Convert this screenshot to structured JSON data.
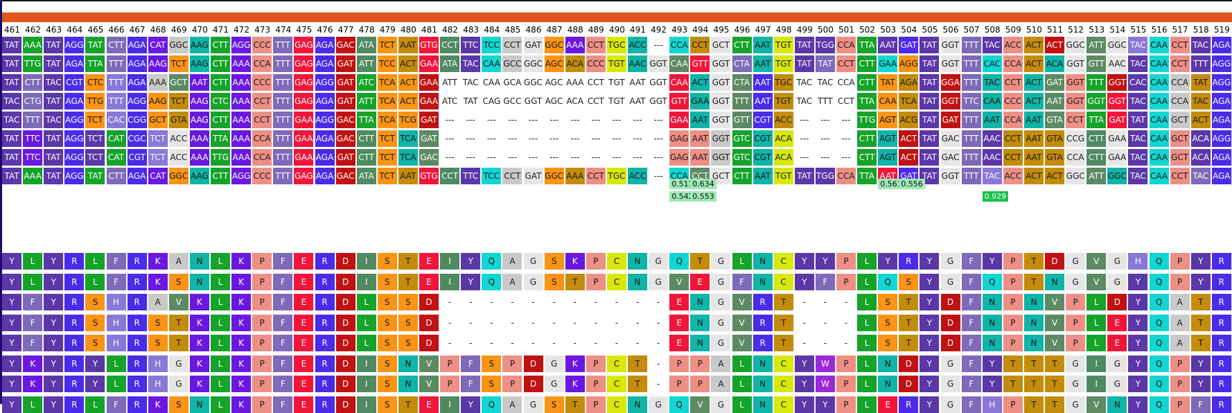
{
  "positions": [
    "461",
    "462",
    "463",
    "464",
    "465",
    "466",
    "467",
    "468",
    "469",
    "470",
    "471",
    "472",
    "473",
    "474",
    "475",
    "476",
    "477",
    "478",
    "479",
    "480",
    "481",
    "482",
    "483",
    "484",
    "485",
    "486",
    "487",
    "488",
    "489",
    "490",
    "491",
    "492",
    "493",
    "494",
    "495",
    "496",
    "497",
    "498",
    "499",
    "500",
    "501",
    "502",
    "503",
    "504",
    "505",
    "506",
    "507",
    "508",
    "509",
    "510",
    "511",
    "512",
    "513",
    "514",
    "515",
    "516",
    "517",
    "518",
    "519"
  ],
  "codon_rows": [
    [
      "TAT",
      "AAA",
      "TAT",
      "AGG",
      "TAT",
      "CTT",
      "AGA",
      "CAT",
      "GGC",
      "AAG",
      "CTT",
      "AGG",
      "CCC",
      "TTT",
      "GAG",
      "AGA",
      "GAC",
      "ATA",
      "TCT",
      "AAT",
      "GTG",
      "CCT",
      "TTC",
      "TCC",
      "CCT",
      "GAT",
      "GGC",
      "AAA",
      "CCT",
      "TGC",
      "ACC",
      "---",
      "CCA",
      "CCT",
      "GCT",
      "CTT",
      "AAT",
      "TGT",
      "TAT",
      "TGG",
      "CCA",
      "TTA",
      "AAT",
      "GAT",
      "TAT",
      "GGT",
      "TTT",
      "TAC",
      "ACC",
      "ACT",
      "ACT",
      "GGC",
      "ATT",
      "GGC",
      "TAC",
      "CAA",
      "CCT",
      "TAC",
      "AGA"
    ],
    [
      "TAT",
      "TTG",
      "TAT",
      "AGA",
      "TTA",
      "TTT",
      "AGA",
      "AAG",
      "TCT",
      "AAG",
      "CTT",
      "AAA",
      "CCA",
      "TTT",
      "GAG",
      "AGA",
      "GAT",
      "ATT",
      "TCC",
      "ACT",
      "GAA",
      "ATA",
      "TAC",
      "CAA",
      "GCC",
      "GGC",
      "AGC",
      "ACA",
      "CCC",
      "TGT",
      "AAC",
      "GGT",
      "CAA",
      "GTT",
      "GGT",
      "CTA",
      "AAT",
      "TGT",
      "TAT",
      "TAT",
      "CCT",
      "CTT",
      "GAA",
      "AGG",
      "TAT",
      "GGT",
      "TTT",
      "CAC",
      "CCA",
      "ACT",
      "ACA",
      "GGT",
      "GTT",
      "AAC",
      "TAC",
      "CAA",
      "CCT",
      "TTT",
      "AGG"
    ],
    [
      "TAT",
      "CTT",
      "TAC",
      "CGT",
      "CTC",
      "TTT",
      "AGA",
      "AAA",
      "GCT",
      "AAT",
      "CTT",
      "AAA",
      "CCC",
      "TTT",
      "GAG",
      "AGG",
      "GAT",
      "ATC",
      "TCA",
      "ACT",
      "GAA",
      "ATT",
      "TAC",
      "CAA",
      "GCA",
      "GGC",
      "AGC",
      "AAA",
      "CCT",
      "TGT",
      "AAT",
      "GGT",
      "CAA",
      "ACT",
      "GGT",
      "CTA",
      "AAT",
      "TGC",
      "TAC",
      "TAC",
      "CCA",
      "CTT",
      "TAT",
      "AGA",
      "TAT",
      "GGA",
      "TTT",
      "TAC",
      "CCT",
      "ACT",
      "GAT",
      "GGT",
      "TTT",
      "GGT",
      "CAC",
      "CAA",
      "CCA",
      "TAT",
      "AGG"
    ],
    [
      "TAC",
      "CTG",
      "TAT",
      "AGA",
      "TTG",
      "TTT",
      "AGG",
      "AAG",
      "TCT",
      "AAG",
      "CTC",
      "AAA",
      "CCT",
      "TTT",
      "GAG",
      "AGA",
      "GAT",
      "ATT",
      "TCA",
      "ACT",
      "GAA",
      "ATC",
      "TAT",
      "CAG",
      "GCC",
      "GGT",
      "AGC",
      "ACA",
      "CCT",
      "TGT",
      "AAT",
      "GGT",
      "GTT",
      "GAA",
      "GGT",
      "TTT",
      "AAT",
      "TGT",
      "TAC",
      "TTT",
      "CCT",
      "TTA",
      "CAA",
      "TCA",
      "TAT",
      "GGT",
      "TTC",
      "CAA",
      "CCC",
      "ACT",
      "AAT",
      "GGT",
      "GGT",
      "GGT",
      "TAC",
      "CAA",
      "CCA",
      "TAC",
      "AGA"
    ],
    [
      "TAC",
      "TTT",
      "TAC",
      "AGG",
      "TCT",
      "CAC",
      "CGG",
      "GCT",
      "GTA",
      "AAG",
      "CTT",
      "AAA",
      "CCT",
      "TTT",
      "GAA",
      "AGG",
      "GAC",
      "TTA",
      "TCA",
      "TCG",
      "GAT",
      "---",
      "---",
      "---",
      "---",
      "---",
      "---",
      "---",
      "---",
      "---",
      "---",
      "---",
      "GAA",
      "AAT",
      "GGT",
      "GTT",
      "CGT",
      "ACC",
      "---",
      "---",
      "---",
      "TTG",
      "AGT",
      "ACG",
      "TAT",
      "GAT",
      "TTT",
      "AAT",
      "CCA",
      "AAT",
      "GTA",
      "CCT",
      "TTA",
      "GAT",
      "TAT",
      "CAA",
      "GCT",
      "ACT",
      "AGA"
    ],
    [
      "TAT",
      "TTC",
      "TAT",
      "AGG",
      "TCT",
      "CAT",
      "CGC",
      "TCT",
      "ACC",
      "AAA",
      "TTA",
      "AAA",
      "CCA",
      "TTT",
      "GAA",
      "AGA",
      "GAC",
      "CTT",
      "TCT",
      "TCA",
      "GAT",
      "---",
      "---",
      "---",
      "---",
      "---",
      "---",
      "---",
      "---",
      "---",
      "---",
      "---",
      "GAG",
      "AAT",
      "GGT",
      "GTC",
      "CGT",
      "ACA",
      "---",
      "---",
      "---",
      "CTT",
      "AGT",
      "ACT",
      "TAT",
      "GAC",
      "TTT",
      "AAC",
      "CCT",
      "AAT",
      "GTA",
      "CCG",
      "CTT",
      "GAA",
      "TAC",
      "CAA",
      "GCT",
      "ACA",
      "AGG"
    ],
    [
      "TAT",
      "TTC",
      "TAT",
      "AGG",
      "TCT",
      "CAT",
      "CGT",
      "TCT",
      "ACC",
      "AAA",
      "TTG",
      "AAA",
      "CCA",
      "TTT",
      "GAA",
      "AGA",
      "GAT",
      "CTT",
      "TCT",
      "TCA",
      "GAC",
      "---",
      "---",
      "---",
      "---",
      "---",
      "---",
      "---",
      "---",
      "---",
      "---",
      "---",
      "GAG",
      "AAT",
      "GGT",
      "GTC",
      "CGT",
      "ACA",
      "---",
      "---",
      "---",
      "CTT",
      "AGT",
      "ACT",
      "TAT",
      "GAC",
      "TTT",
      "AAC",
      "CCT",
      "AAT",
      "GTA",
      "CCA",
      "CTT",
      "GAA",
      "TAC",
      "CAA",
      "GCT",
      "ACA",
      "AGA"
    ],
    [
      "TAT",
      "AAA",
      "TAT",
      "AGG",
      "TAT",
      "CTT",
      "AGA",
      "CAT",
      "GGC",
      "AAG",
      "CTT",
      "AGG",
      "CCC",
      "TTT",
      "GAG",
      "AGA",
      "GAC",
      "ATA",
      "TCT",
      "AAT",
      "GTG",
      "CCT",
      "TTC",
      "TCC",
      "CCT",
      "GAT",
      "GGC",
      "AAA",
      "CCT",
      "TGC",
      "ACC",
      "---",
      "CCA",
      "CCT",
      "GCT",
      "CTT",
      "AAT",
      "TGT",
      "TAT",
      "TGG",
      "CCA",
      "TTA",
      "AAT",
      "GAT",
      "TAT",
      "GGT",
      "TTT",
      "TAC",
      "ACC",
      "ACT",
      "ACT",
      "GGC",
      "ATT",
      "GGC",
      "TAC",
      "CAA",
      "CCT",
      "TAC",
      "AGA"
    ]
  ],
  "scores": [
    {
      "col": 32,
      "row": 0,
      "value": "0.511",
      "style": "light"
    },
    {
      "col": 33,
      "row": 0,
      "value": "0.634",
      "style": "light"
    },
    {
      "col": 32,
      "row": 1,
      "value": "0.542",
      "style": "light"
    },
    {
      "col": 33,
      "row": 1,
      "value": "0.553",
      "style": "light"
    },
    {
      "col": 42,
      "row": 0,
      "value": "0.563",
      "style": "light"
    },
    {
      "col": 43,
      "row": 0,
      "value": "0.556",
      "style": "light"
    },
    {
      "col": 47,
      "row": 1,
      "value": "0.929",
      "style": "dark"
    }
  ],
  "aa_rows": [
    [
      "Y",
      "L",
      "Y",
      "R",
      "L",
      "F",
      "R",
      "K",
      "A",
      "N",
      "L",
      "K",
      "P",
      "F",
      "E",
      "R",
      "D",
      "I",
      "S",
      "T",
      "E",
      "I",
      "Y",
      "Q",
      "A",
      "G",
      "S",
      "K",
      "P",
      "C",
      "N",
      "G",
      "Q",
      "T",
      "G",
      "L",
      "N",
      "C",
      "Y",
      "Y",
      "P",
      "L",
      "Y",
      "R",
      "Y",
      "G",
      "F",
      "Y",
      "P",
      "T",
      "D",
      "G",
      "V",
      "G",
      "H",
      "Q",
      "P",
      "Y",
      "R"
    ],
    [
      "Y",
      "L",
      "Y",
      "R",
      "L",
      "F",
      "R",
      "K",
      "S",
      "N",
      "L",
      "K",
      "P",
      "F",
      "E",
      "R",
      "D",
      "I",
      "S",
      "T",
      "E",
      "I",
      "Y",
      "Q",
      "A",
      "G",
      "S",
      "T",
      "P",
      "C",
      "N",
      "G",
      "V",
      "E",
      "G",
      "F",
      "N",
      "C",
      "Y",
      "F",
      "P",
      "L",
      "Q",
      "S",
      "Y",
      "G",
      "F",
      "Q",
      "P",
      "T",
      "N",
      "G",
      "V",
      "G",
      "Y",
      "Q",
      "P",
      "Y",
      "R"
    ],
    [
      "Y",
      "F",
      "Y",
      "R",
      "S",
      "H",
      "R",
      "A",
      "V",
      "K",
      "L",
      "K",
      "P",
      "F",
      "E",
      "R",
      "D",
      "L",
      "S",
      "S",
      "D",
      "-",
      "-",
      "-",
      "-",
      "-",
      "-",
      "-",
      "-",
      "-",
      "-",
      "-",
      "E",
      "N",
      "G",
      "V",
      "R",
      "T",
      "-",
      "-",
      "-",
      "L",
      "S",
      "T",
      "Y",
      "D",
      "F",
      "N",
      "P",
      "N",
      "V",
      "P",
      "L",
      "D",
      "Y",
      "Q",
      "A",
      "T",
      "R"
    ],
    [
      "Y",
      "F",
      "Y",
      "R",
      "S",
      "H",
      "R",
      "S",
      "T",
      "K",
      "L",
      "K",
      "P",
      "F",
      "E",
      "R",
      "D",
      "L",
      "S",
      "S",
      "D",
      "-",
      "-",
      "-",
      "-",
      "-",
      "-",
      "-",
      "-",
      "-",
      "-",
      "-",
      "E",
      "N",
      "G",
      "V",
      "R",
      "T",
      "-",
      "-",
      "-",
      "L",
      "S",
      "T",
      "Y",
      "D",
      "F",
      "N",
      "P",
      "N",
      "V",
      "P",
      "L",
      "E",
      "Y",
      "Q",
      "A",
      "T",
      "R"
    ],
    [
      "Y",
      "F",
      "Y",
      "R",
      "S",
      "H",
      "R",
      "S",
      "T",
      "K",
      "L",
      "K",
      "P",
      "F",
      "E",
      "R",
      "D",
      "L",
      "S",
      "S",
      "D",
      "-",
      "-",
      "-",
      "-",
      "-",
      "-",
      "-",
      "-",
      "-",
      "-",
      "-",
      "E",
      "N",
      "G",
      "V",
      "R",
      "T",
      "-",
      "-",
      "-",
      "L",
      "S",
      "T",
      "Y",
      "D",
      "F",
      "N",
      "P",
      "N",
      "V",
      "P",
      "L",
      "E",
      "Y",
      "Q",
      "A",
      "T",
      "R"
    ],
    [
      "Y",
      "K",
      "Y",
      "R",
      "Y",
      "L",
      "R",
      "H",
      "G",
      "K",
      "L",
      "K",
      "P",
      "F",
      "E",
      "R",
      "D",
      "I",
      "S",
      "N",
      "V",
      "P",
      "F",
      "S",
      "P",
      "D",
      "G",
      "K",
      "P",
      "C",
      "T",
      "-",
      "P",
      "P",
      "A",
      "L",
      "N",
      "C",
      "Y",
      "W",
      "P",
      "L",
      "N",
      "D",
      "Y",
      "G",
      "F",
      "Y",
      "T",
      "T",
      "T",
      "G",
      "I",
      "G",
      "Y",
      "Q",
      "P",
      "Y",
      "R"
    ],
    [
      "Y",
      "K",
      "Y",
      "R",
      "Y",
      "L",
      "R",
      "H",
      "G",
      "K",
      "L",
      "K",
      "P",
      "F",
      "E",
      "R",
      "D",
      "I",
      "S",
      "N",
      "V",
      "P",
      "F",
      "S",
      "P",
      "D",
      "G",
      "K",
      "P",
      "C",
      "T",
      "-",
      "P",
      "P",
      "A",
      "L",
      "N",
      "C",
      "Y",
      "W",
      "P",
      "L",
      "N",
      "D",
      "Y",
      "G",
      "F",
      "Y",
      "T",
      "T",
      "T",
      "G",
      "I",
      "G",
      "Y",
      "Q",
      "P",
      "Y",
      "R"
    ],
    [
      "Y",
      "L",
      "Y",
      "R",
      "L",
      "F",
      "R",
      "K",
      "S",
      "N",
      "L",
      "K",
      "P",
      "F",
      "E",
      "R",
      "D",
      "I",
      "S",
      "T",
      "E",
      "I",
      "Y",
      "Q",
      "A",
      "G",
      "S",
      "T",
      "P",
      "C",
      "N",
      "G",
      "Q",
      "V",
      "G",
      "L",
      "N",
      "C",
      "Y",
      "Y",
      "P",
      "L",
      "E",
      "R",
      "Y",
      "G",
      "F",
      "H",
      "P",
      "T",
      "T",
      "G",
      "V",
      "N",
      "Y",
      "Q",
      "P",
      "F",
      "R"
    ]
  ],
  "aa_colors": {
    "Y": "#5b37a8",
    "L": "#16a32a",
    "R": "#4b2ae8",
    "F": "#7d6ab8",
    "K": "#6a18e0",
    "A": "#c9c9c9",
    "N": "#10b4a8",
    "P": "#ee8f86",
    "E": "#f0163a",
    "D": "#c01212",
    "I": "#4f8a62",
    "S": "#f99416",
    "T": "#c48c0c",
    "Q": "#12d6d2",
    "G": "#e6e6e6",
    "C": "#d8e80c",
    "V": "#5d8a63",
    "H": "#8a78d6",
    "W": "#9a2ad6",
    "M": "#d8e80c",
    "-": "transparent"
  },
  "dark_aas": [
    "Y",
    "R",
    "K",
    "E",
    "D",
    "I",
    "L",
    "H",
    "W",
    "V",
    "F"
  ]
}
